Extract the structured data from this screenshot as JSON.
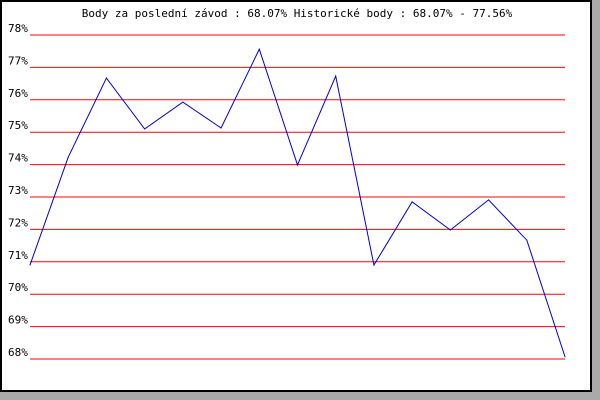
{
  "chart_data": {
    "type": "line",
    "title": "Body za poslední závod : 68.07%  Historické body : 68.07% - 77.56%",
    "xlabel": "",
    "ylabel": "",
    "ylim": [
      68,
      78
    ],
    "yticks": [
      "68%",
      "69%",
      "70%",
      "71%",
      "72%",
      "73%",
      "74%",
      "75%",
      "76%",
      "77%",
      "78%"
    ],
    "grid": true,
    "series": [
      {
        "values": [
          70.9,
          74.23,
          76.67,
          75.1,
          75.93,
          75.13,
          77.56,
          73.99,
          76.73,
          70.9,
          72.85,
          71.98,
          72.91,
          71.67,
          68.07
        ]
      }
    ],
    "colors": {
      "line": "#0000cc",
      "grid": "#ff0000"
    }
  }
}
